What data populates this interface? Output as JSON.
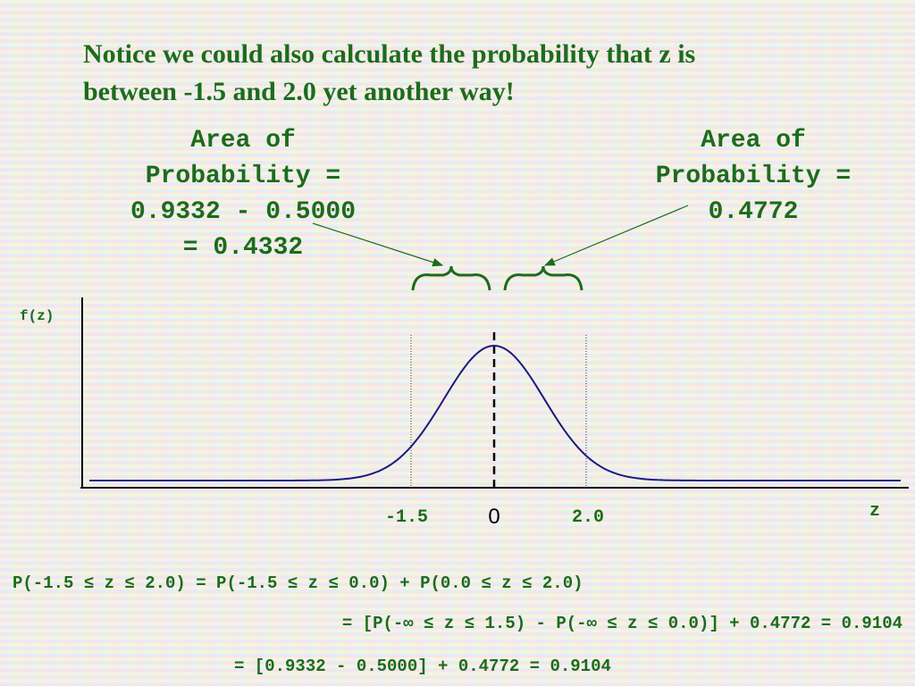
{
  "title": [
    "Notice we could also calculate the probability that z is",
    "between -1.5 and 2.0 yet another way!"
  ],
  "annotations": [
    {
      "lines": [
        "Area of",
        "Probability =",
        "0.9332 - 0.5000",
        "= 0.4332"
      ]
    },
    {
      "lines": [
        "Area of",
        "Probability =",
        "0.4772"
      ]
    }
  ],
  "axes": {
    "y_label": "f(z)",
    "x_label": "z",
    "ticks": [
      "-1.5",
      "0",
      "2.0"
    ]
  },
  "equations": [
    "P(-1.5 ≤ z ≤ 2.0) = P(-1.5 ≤ z ≤ 0.0) + P(0.0 ≤ z ≤ 2.0)",
    "= [P(-∞ ≤ z ≤ 1.5) - P(-∞ ≤ z ≤ 0.0)] + 0.4772 = 0.9104",
    "= [0.9332 - 0.5000] + 0.4772 = 0.9104"
  ]
}
